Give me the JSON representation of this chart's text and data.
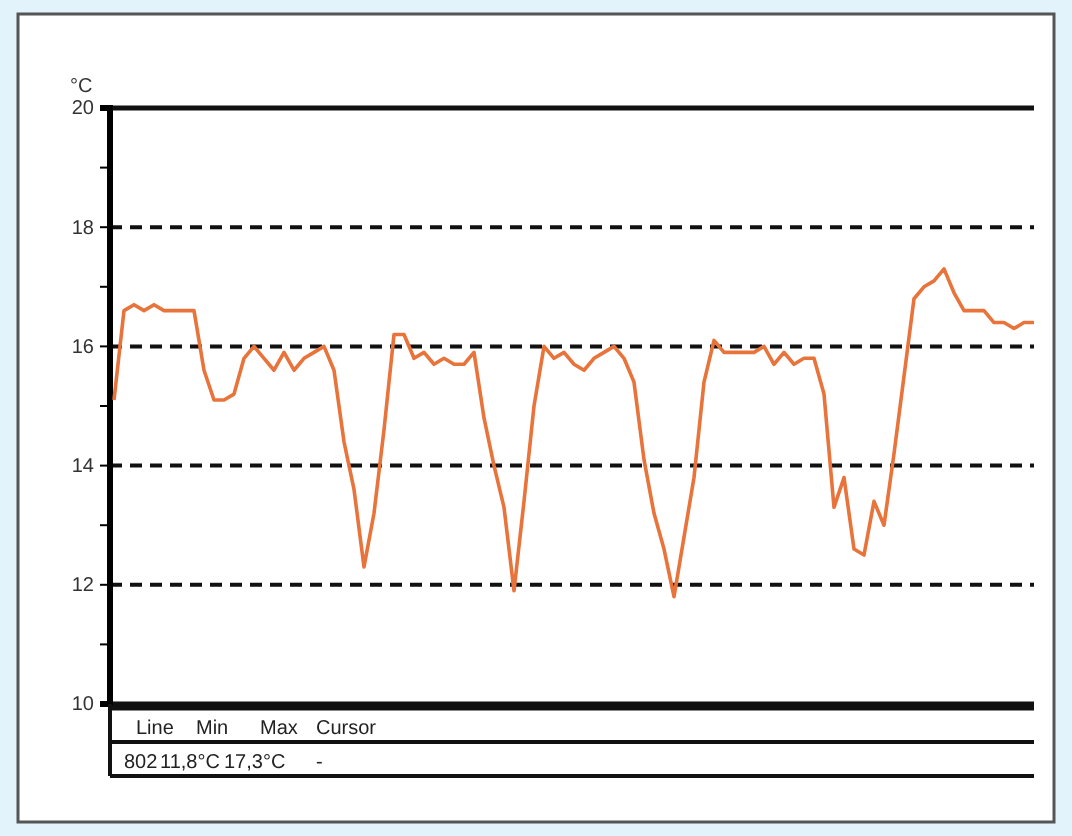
{
  "chart_data": {
    "type": "line",
    "ylabel": "°C",
    "ylim": [
      10,
      20
    ],
    "yticks": [
      10,
      {
        "value": 11,
        "label": null
      },
      12,
      {
        "value": 13,
        "label": null
      },
      14,
      {
        "value": 15,
        "label": null
      },
      16,
      {
        "value": 17,
        "label": null
      },
      18,
      {
        "value": 19,
        "label": null
      },
      20
    ],
    "grid": "y",
    "line_style": "solid",
    "marker": "none",
    "tick_labels": "y",
    "categories": [
      null,
      null,
      null,
      null,
      null,
      null,
      null,
      null,
      null,
      null,
      null,
      null,
      null,
      null,
      null,
      null,
      null,
      null,
      null,
      null,
      null,
      null,
      null,
      null,
      null,
      null,
      null,
      null,
      null,
      null,
      null,
      null,
      null,
      null,
      null,
      null,
      null,
      null,
      null,
      null,
      null,
      null,
      null,
      null,
      null,
      null,
      null,
      null,
      null,
      null,
      null,
      null,
      null,
      null,
      null,
      null,
      null,
      null,
      null,
      null,
      null,
      null,
      null,
      null,
      null,
      null,
      null,
      null,
      null,
      null,
      null,
      null,
      null,
      null,
      null,
      null,
      null,
      null,
      null,
      null,
      null,
      null,
      null,
      null,
      null,
      null,
      null,
      null,
      null,
      null,
      null,
      null,
      null
    ],
    "series": [
      {
        "color": "#e8743b",
        "values": [
          15.1,
          16.6,
          16.7,
          16.6,
          16.7,
          16.6,
          16.6,
          16.6,
          16.6,
          15.6,
          15.1,
          15.1,
          15.2,
          15.8,
          16.0,
          15.8,
          15.6,
          15.9,
          15.6,
          15.8,
          15.9,
          16.0,
          15.6,
          14.4,
          13.6,
          12.3,
          13.2,
          14.6,
          16.2,
          16.2,
          15.8,
          15.9,
          15.7,
          15.8,
          15.7,
          15.7,
          15.9,
          14.8,
          14.0,
          13.3,
          11.9,
          13.4,
          15.0,
          16.0,
          15.8,
          15.9,
          15.7,
          15.6,
          15.8,
          15.9,
          16.0,
          15.8,
          15.4,
          14.1,
          13.2,
          12.6,
          11.8,
          12.8,
          13.8,
          15.4,
          16.1,
          15.9,
          15.9,
          15.9,
          15.9,
          16.0,
          15.7,
          15.9,
          15.7,
          15.8,
          15.8,
          15.2,
          13.3,
          13.8,
          12.6,
          12.5,
          13.4,
          13.0,
          14.2,
          15.5,
          16.8,
          17.0,
          17.1,
          17.3,
          16.9,
          16.6,
          16.6,
          16.6,
          16.4,
          16.4,
          16.3,
          16.4,
          16.4
        ]
      }
    ],
    "annotations": [
      "Line",
      "Min",
      "Max",
      "Cursor",
      "802",
      "11,8°C",
      "17,3°C",
      "-"
    ]
  }
}
